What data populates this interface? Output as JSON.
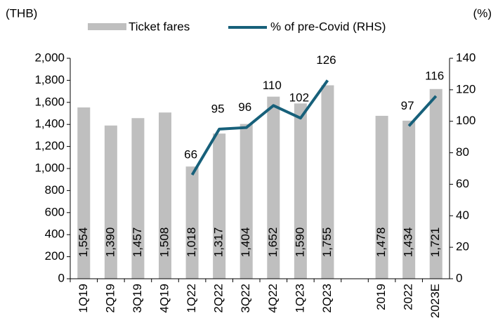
{
  "chart_data": {
    "type": "bar-line",
    "y_label": "(THB)",
    "y2_label": "(%)",
    "categories": [
      "1Q19",
      "2Q19",
      "3Q19",
      "4Q19",
      "1Q22",
      "2Q22",
      "3Q22",
      "4Q22",
      "1Q23",
      "2Q23",
      null,
      "2019",
      "2022",
      "2023E"
    ],
    "series": [
      {
        "name": "Ticket fares",
        "color": "#bfbfbf",
        "type": "bar",
        "values": [
          1554,
          1390,
          1457,
          1508,
          1018,
          1317,
          1404,
          1652,
          1590,
          1755,
          null,
          1478,
          1434,
          1721
        ],
        "value_labels": [
          "1,554",
          "1,390",
          "1,457",
          "1,508",
          "1,018",
          "1,317",
          "1,404",
          "1,652",
          "1,590",
          "1,755",
          null,
          "1,478",
          "1,434",
          "1,721"
        ]
      },
      {
        "name": "% of pre-Covid (RHS)",
        "color": "#17607a",
        "type": "line",
        "axis": "y2",
        "values": [
          null,
          null,
          null,
          null,
          66,
          95,
          96,
          110,
          102,
          126,
          null,
          null,
          97,
          116
        ]
      }
    ],
    "ylim": [
      0,
      2000
    ],
    "yticks": [
      0,
      200,
      400,
      600,
      800,
      {
        "value": 1000,
        "label": "1,000"
      },
      {
        "value": 1200,
        "label": "1,200"
      },
      {
        "value": 1400,
        "label": "1,400"
      },
      {
        "value": 1600,
        "label": "1,600"
      },
      {
        "value": 1800,
        "label": "1,800"
      },
      {
        "value": 2000,
        "label": "2,000"
      }
    ],
    "y2lim": [
      0,
      140
    ],
    "y2ticks": [
      0,
      20,
      40,
      60,
      80,
      100,
      120,
      140
    ],
    "grid": false
  }
}
